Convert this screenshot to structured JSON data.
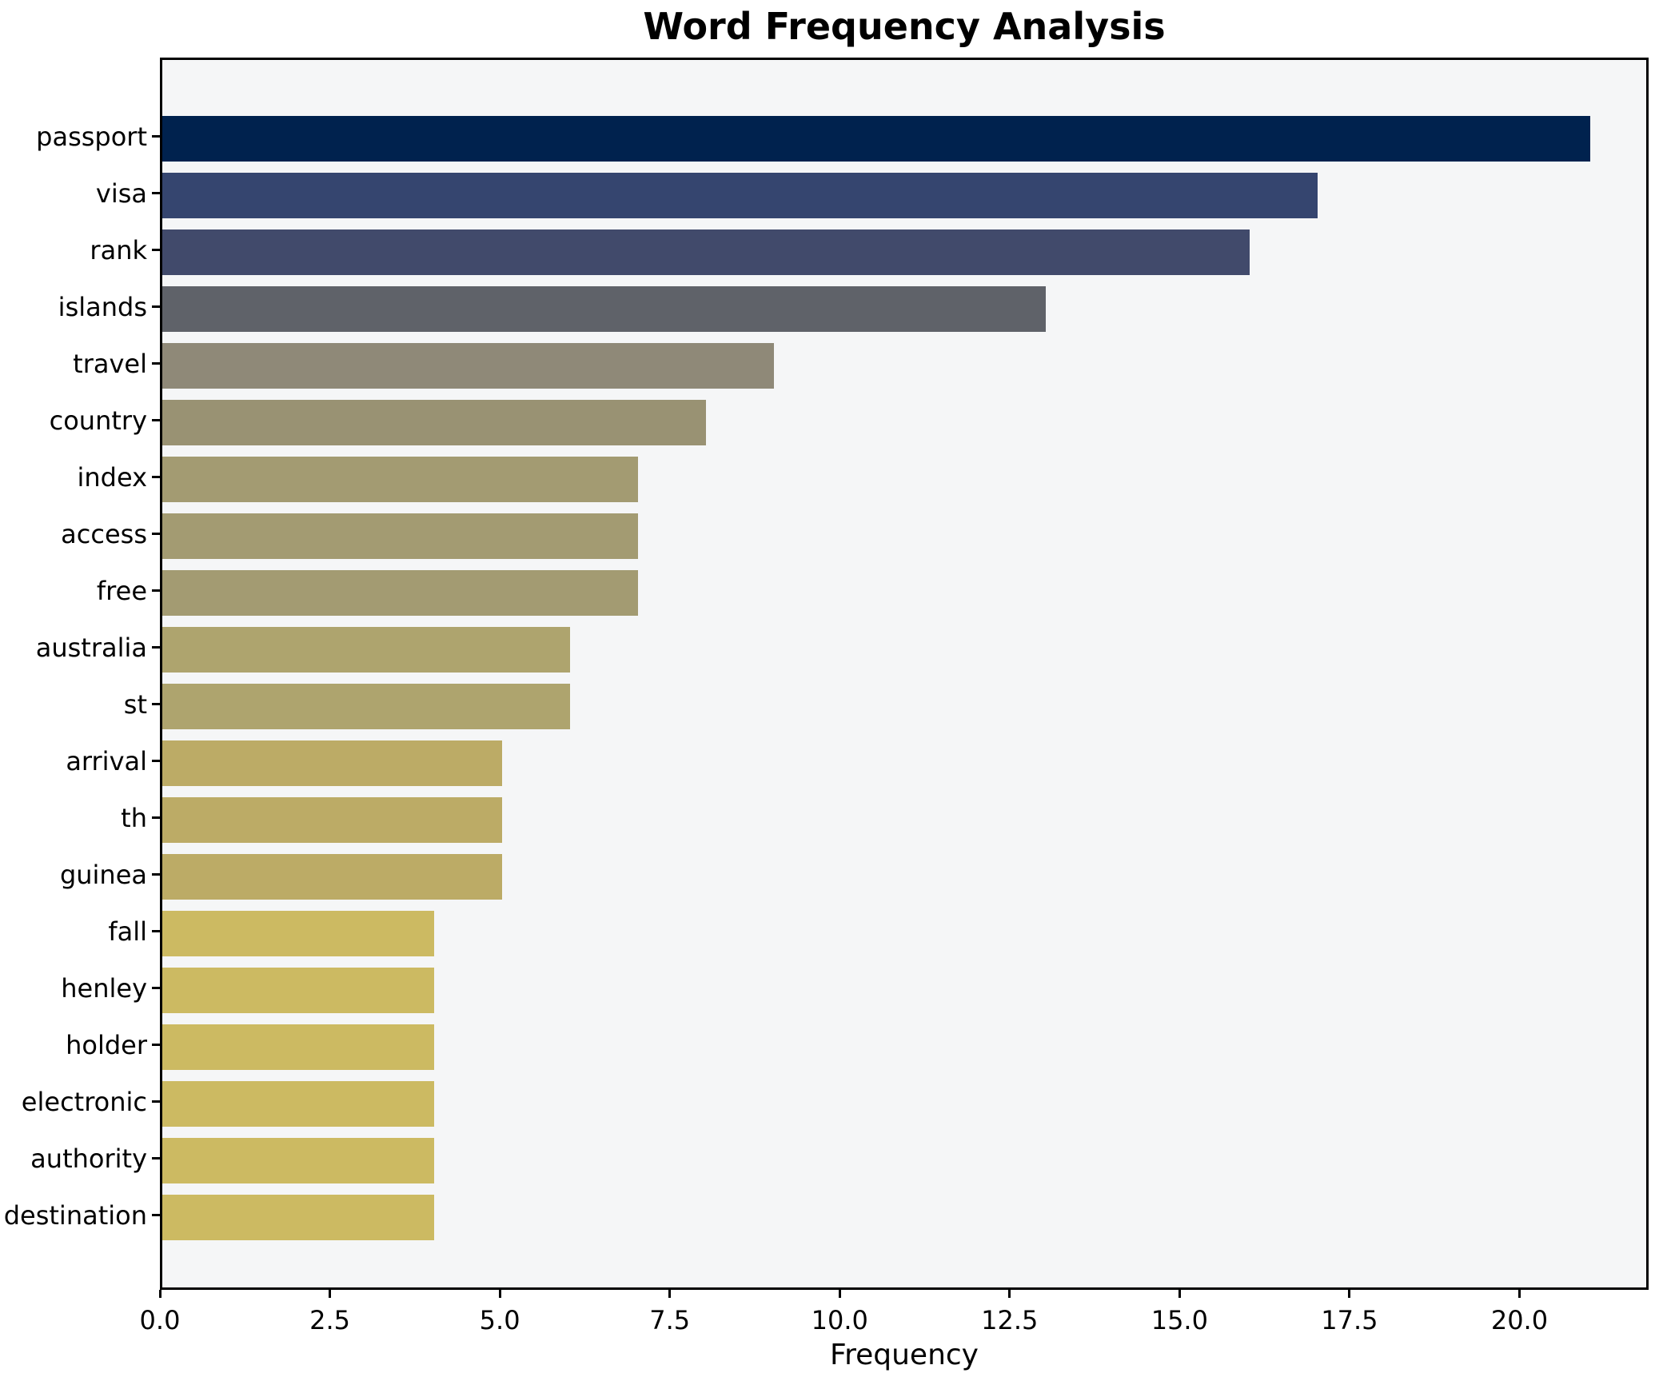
{
  "chart_data": {
    "type": "bar",
    "orientation": "horizontal",
    "title": "Word Frequency Analysis",
    "xlabel": "Frequency",
    "ylabel": "",
    "categories": [
      "passport",
      "visa",
      "rank",
      "islands",
      "travel",
      "country",
      "index",
      "access",
      "free",
      "australia",
      "st",
      "arrival",
      "th",
      "guinea",
      "fall",
      "henley",
      "holder",
      "electronic",
      "authority",
      "destination"
    ],
    "values": [
      21,
      17,
      16,
      13,
      9,
      8,
      7,
      7,
      7,
      6,
      6,
      5,
      5,
      5,
      4,
      4,
      4,
      4,
      4,
      4
    ],
    "bar_colors": [
      "#00224e",
      "#35456f",
      "#414a6b",
      "#5f6269",
      "#8f8978",
      "#999273",
      "#a39b72",
      "#a39b72",
      "#a39b72",
      "#aea46e",
      "#aea46e",
      "#bcab66",
      "#bcab66",
      "#bcab66",
      "#ccba62",
      "#ccba62",
      "#ccba62",
      "#ccba62",
      "#ccba62",
      "#ccba62"
    ],
    "xlim": [
      0,
      21.9
    ],
    "xticks": [
      "0.0",
      "2.5",
      "5.0",
      "7.5",
      "10.0",
      "12.5",
      "15.0",
      "17.5",
      "20.0"
    ],
    "grid": false,
    "legend": "none",
    "plot_background": "#f5f6f7",
    "figure_background": "#ffffff",
    "border_color": "#000000"
  }
}
